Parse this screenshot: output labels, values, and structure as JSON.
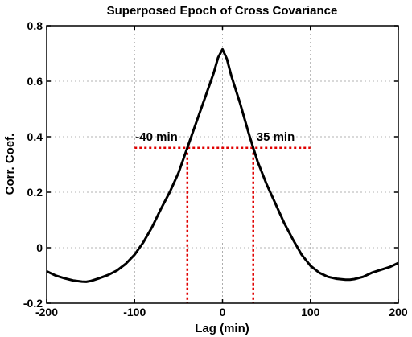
{
  "chart_data": {
    "type": "line",
    "title": "Superposed Epoch of Cross Covariance",
    "xlabel": "Lag (min)",
    "ylabel": "Corr. Coef.",
    "xlim": [
      -200,
      200
    ],
    "ylim": [
      -0.2,
      0.8
    ],
    "xticks": [
      -200,
      -100,
      0,
      100,
      200
    ],
    "yticks": [
      -0.2,
      0,
      0.2,
      0.4,
      0.6,
      0.8
    ],
    "xtick_labels": [
      "-200",
      "-100",
      "0",
      "100",
      "200"
    ],
    "ytick_labels": [
      "-0.2",
      "0",
      "0.2",
      "0.4",
      "0.6",
      "0.8"
    ],
    "grid": true,
    "series": [
      {
        "color": "#000000",
        "x": [
          -200,
          -190,
          -180,
          -170,
          -160,
          -155,
          -150,
          -140,
          -130,
          -120,
          -110,
          -100,
          -90,
          -80,
          -70,
          -60,
          -50,
          -40,
          -30,
          -20,
          -10,
          -5,
          0,
          5,
          10,
          20,
          30,
          35,
          40,
          50,
          60,
          70,
          80,
          90,
          100,
          110,
          120,
          130,
          140,
          145,
          150,
          160,
          170,
          180,
          190,
          200
        ],
        "y": [
          -0.085,
          -0.1,
          -0.11,
          -0.118,
          -0.122,
          -0.123,
          -0.12,
          -0.11,
          -0.098,
          -0.082,
          -0.058,
          -0.025,
          0.02,
          0.075,
          0.14,
          0.2,
          0.27,
          0.36,
          0.45,
          0.54,
          0.63,
          0.685,
          0.715,
          0.68,
          0.62,
          0.52,
          0.41,
          0.36,
          0.31,
          0.23,
          0.16,
          0.09,
          0.03,
          -0.025,
          -0.065,
          -0.09,
          -0.105,
          -0.112,
          -0.115,
          -0.115,
          -0.113,
          -0.105,
          -0.09,
          -0.08,
          -0.07,
          -0.055
        ]
      }
    ],
    "reference_lines": {
      "color": "#e00000",
      "horizontal": {
        "y": 0.36,
        "x_range": [
          -100,
          100
        ]
      },
      "vertical": [
        {
          "x": -40,
          "label": "-40 min"
        },
        {
          "x": 35,
          "label": "35 min"
        }
      ]
    }
  }
}
